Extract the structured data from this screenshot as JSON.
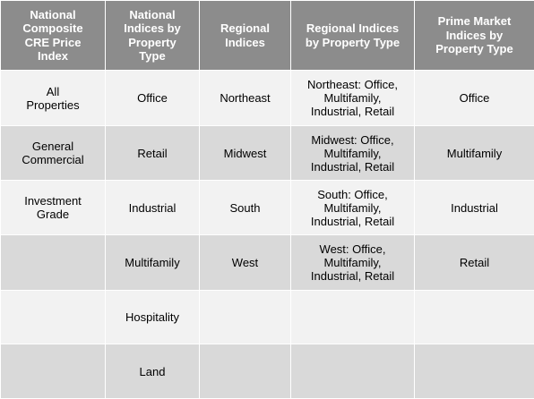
{
  "header": {
    "col1": "National Composite CRE Price Index",
    "col2": "National Indices by Property Type",
    "col3": "Regional Indices",
    "col4": "Regional Indices by Property Type",
    "col5": "Prime Market Indices by Property Type"
  },
  "rows": [
    {
      "c1": "All Properties",
      "c2": "Office",
      "c3": "Northeast",
      "c4": "Northeast: Office, Multifamily, Industrial, Retail",
      "c5": "Office"
    },
    {
      "c1": "General Commercial",
      "c2": "Retail",
      "c3": "Midwest",
      "c4": "Midwest: Office, Multifamily, Industrial, Retail",
      "c5": "Multifamily"
    },
    {
      "c1": "Investment Grade",
      "c2": "Industrial",
      "c3": "South",
      "c4": "South: Office, Multifamily, Industrial, Retail",
      "c5": "Industrial"
    },
    {
      "c1": "",
      "c2": "Multifamily",
      "c3": "West",
      "c4": "West: Office, Multifamily, Industrial, Retail",
      "c5": "Retail"
    },
    {
      "c1": "",
      "c2": "Hospitality",
      "c3": "",
      "c4": "",
      "c5": ""
    },
    {
      "c1": "",
      "c2": "Land",
      "c3": "",
      "c4": "",
      "c5": ""
    }
  ]
}
